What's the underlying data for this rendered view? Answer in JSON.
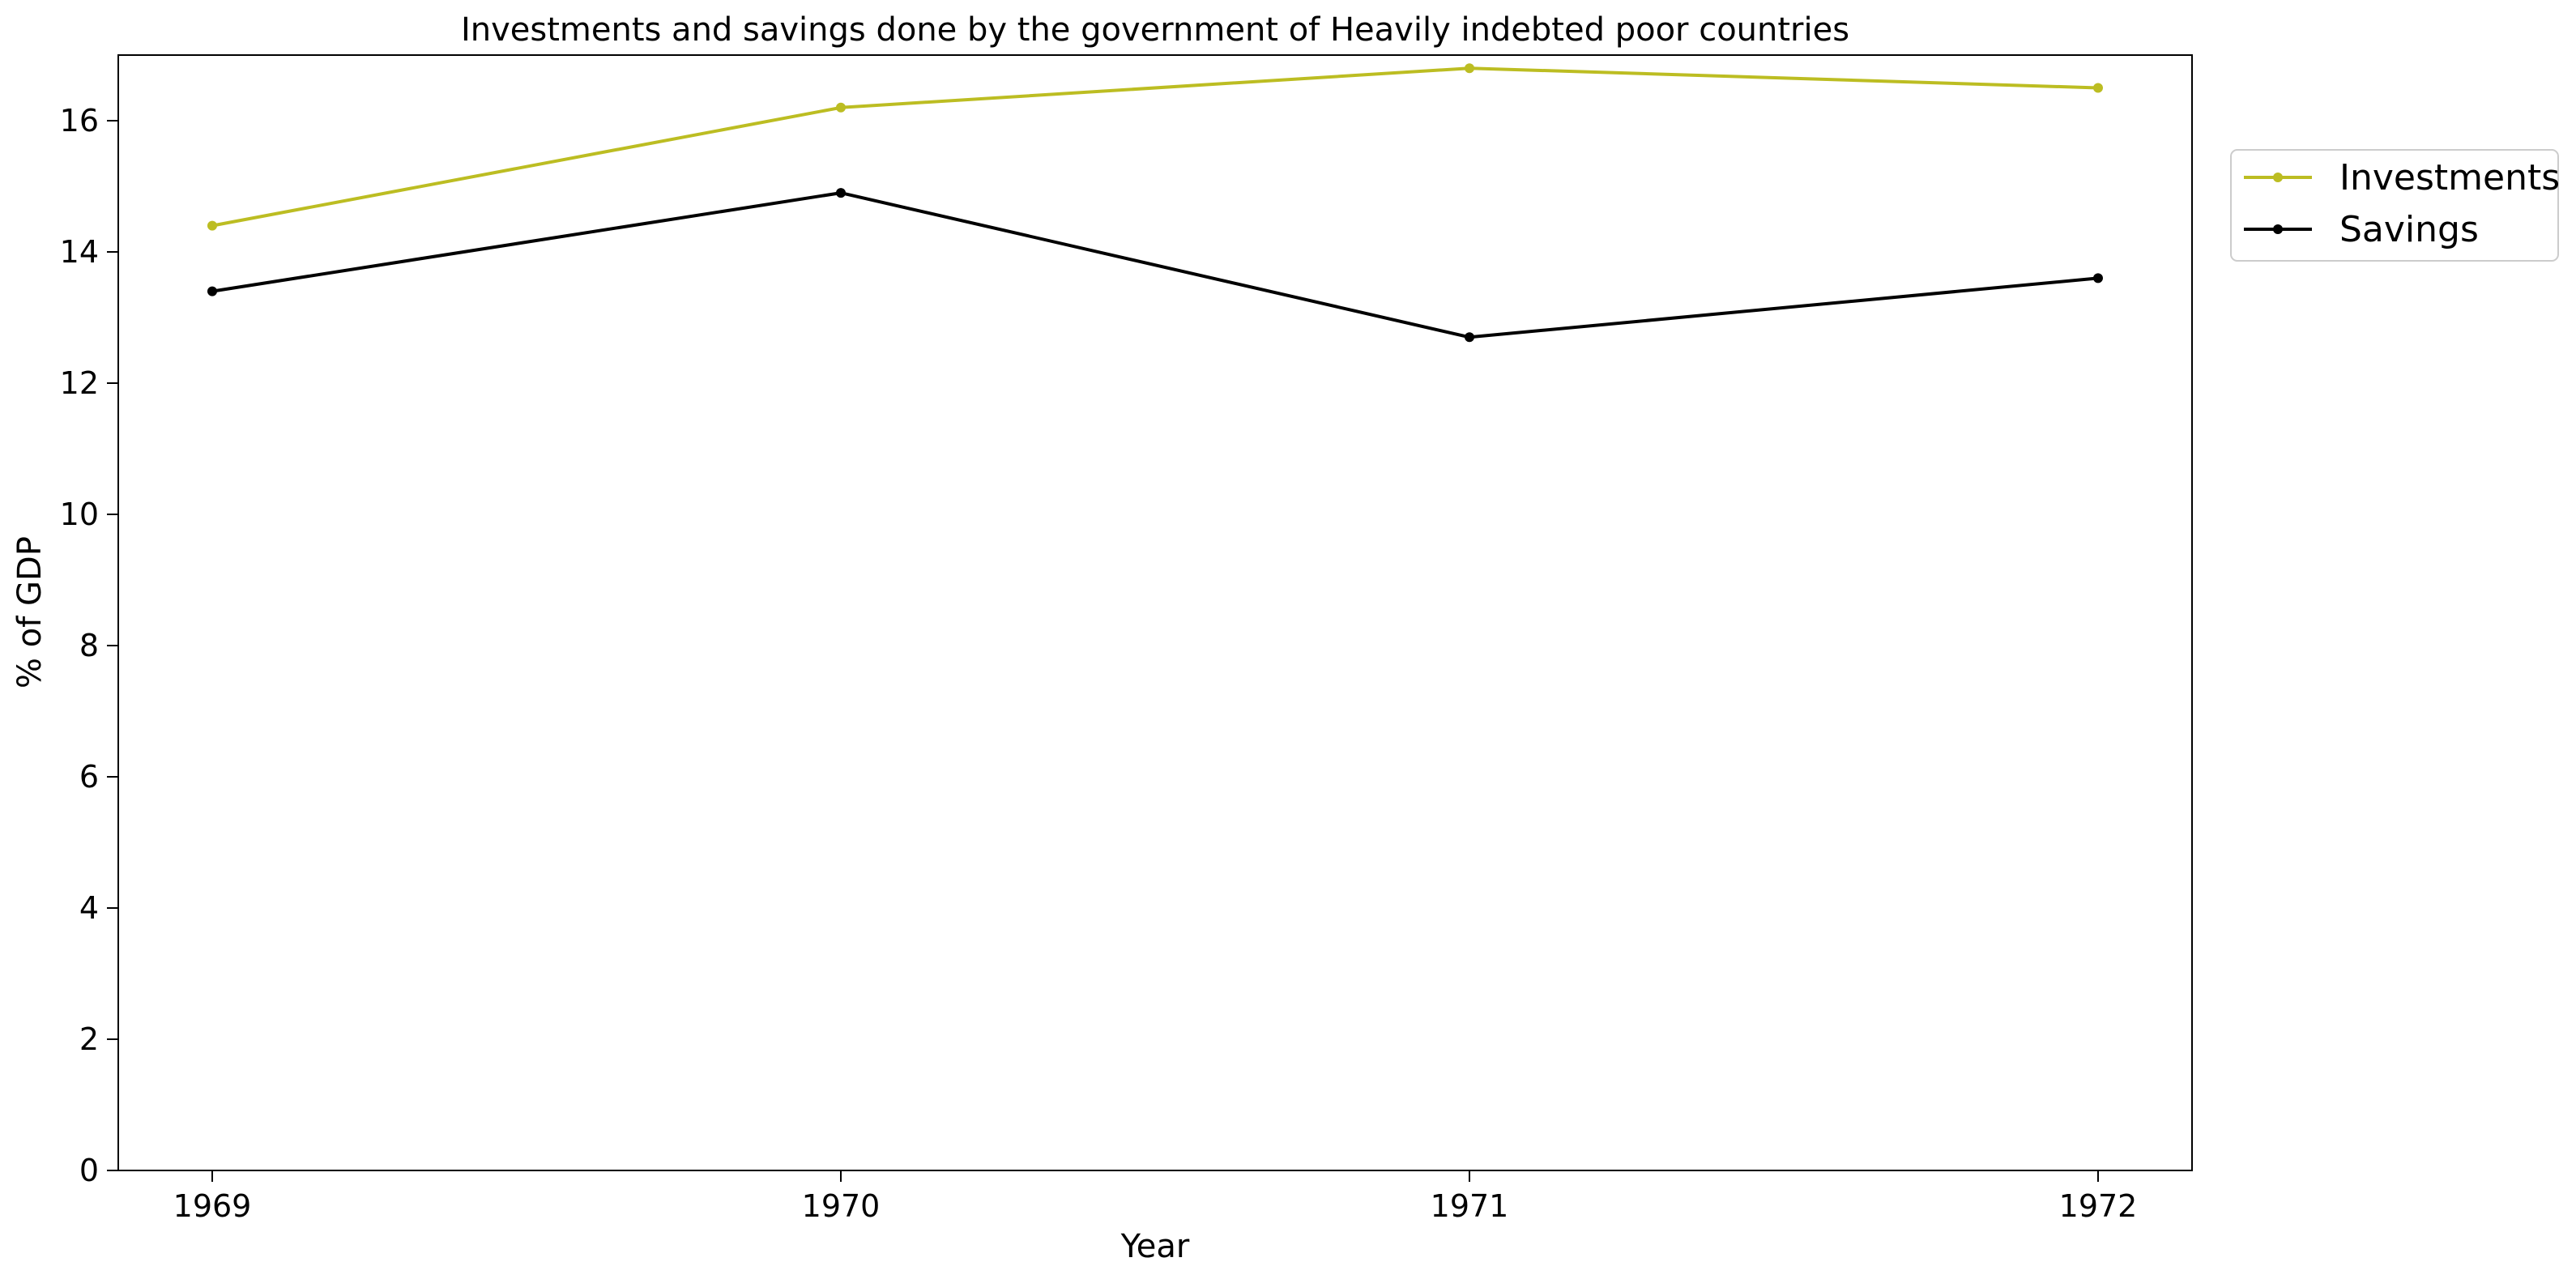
{
  "chart_data": {
    "type": "line",
    "title": "Investments and savings done by the government of Heavily indebted poor countries",
    "xlabel": "Year",
    "ylabel": "% of GDP",
    "categories": [
      "1969",
      "1970",
      "1971",
      "1972"
    ],
    "series": [
      {
        "name": "Investments",
        "values": [
          14.4,
          16.2,
          16.8,
          16.5
        ],
        "color": "#bcbd22",
        "marker": "dot"
      },
      {
        "name": "Savings",
        "values": [
          13.4,
          14.9,
          12.7,
          13.6
        ],
        "color": "#000000",
        "marker": "dot"
      }
    ],
    "yticks": [
      0,
      2,
      4,
      6,
      8,
      10,
      12,
      14,
      16
    ],
    "ylim": [
      0,
      17
    ],
    "grid": false,
    "legend_position": "outside-top-right"
  }
}
